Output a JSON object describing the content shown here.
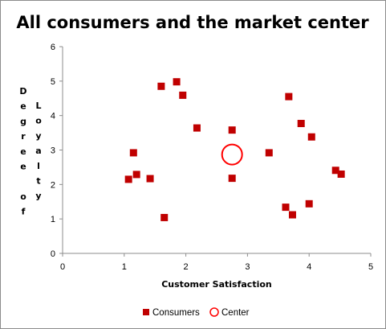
{
  "chart_data": {
    "type": "scatter",
    "title": "All consumers and the market center",
    "xlabel": "Customer Satisfaction",
    "ylabel": "Degree of Loyalty",
    "xlim": [
      0,
      5
    ],
    "ylim": [
      0,
      6
    ],
    "xticks": [
      "0",
      "1",
      "2",
      "3",
      "4",
      "5"
    ],
    "yticks": [
      "0",
      "1",
      "2",
      "3",
      "4",
      "5",
      "6"
    ],
    "grid": false,
    "legend_position": "bottom",
    "series": [
      {
        "name": "Consumers",
        "marker": "square",
        "color": "#c00000",
        "points": [
          {
            "x": 1.07,
            "y": 2.15
          },
          {
            "x": 1.15,
            "y": 2.92
          },
          {
            "x": 1.2,
            "y": 2.29
          },
          {
            "x": 1.42,
            "y": 2.17
          },
          {
            "x": 1.6,
            "y": 4.85
          },
          {
            "x": 1.65,
            "y": 1.04
          },
          {
            "x": 1.85,
            "y": 4.98
          },
          {
            "x": 1.95,
            "y": 4.59
          },
          {
            "x": 2.18,
            "y": 3.64
          },
          {
            "x": 2.75,
            "y": 3.58
          },
          {
            "x": 2.75,
            "y": 2.18
          },
          {
            "x": 3.35,
            "y": 2.92
          },
          {
            "x": 3.62,
            "y": 1.34
          },
          {
            "x": 3.67,
            "y": 4.55
          },
          {
            "x": 3.73,
            "y": 1.12
          },
          {
            "x": 3.87,
            "y": 3.77
          },
          {
            "x": 4.0,
            "y": 1.44
          },
          {
            "x": 4.04,
            "y": 3.38
          },
          {
            "x": 4.43,
            "y": 2.41
          },
          {
            "x": 4.52,
            "y": 2.3
          }
        ]
      },
      {
        "name": "Center",
        "marker": "circle-open",
        "color": "#ff0000",
        "points": [
          {
            "x": 2.75,
            "y": 2.87
          }
        ]
      }
    ]
  }
}
